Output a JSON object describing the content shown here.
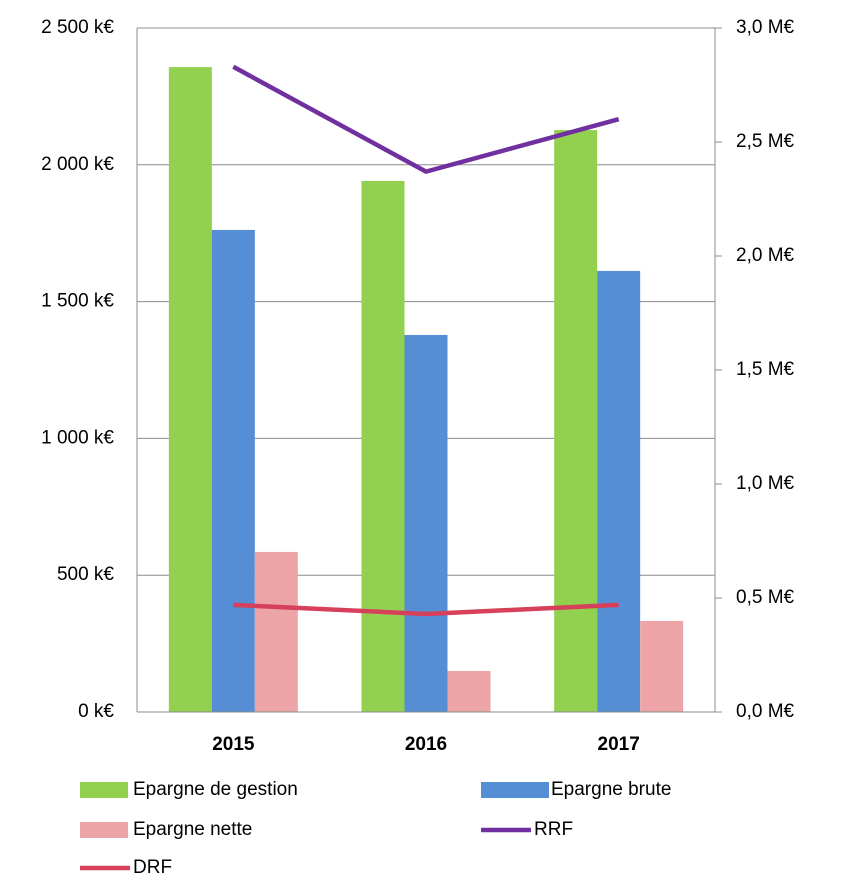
{
  "chart_data": {
    "type": "bar",
    "categories": [
      "2015",
      "2016",
      "2017"
    ],
    "series": [
      {
        "name": "Epargne de gestion",
        "color": "#92d050",
        "values": [
          2357,
          1941,
          2127
        ]
      },
      {
        "name": "Epargne brute",
        "color": "#558ed5",
        "values": [
          1762,
          1378,
          1612
        ]
      },
      {
        "name": "Epargne nette",
        "color": "#eca4a6",
        "values": [
          585,
          150,
          333
        ]
      },
      {
        "name": "RRF",
        "color": "#7030a0",
        "type": "line",
        "axis": "y2",
        "values": [
          2.83,
          2.37,
          2.6
        ]
      },
      {
        "name": "DRF",
        "color": "#d6405a",
        "type": "line",
        "axis": "y2",
        "values": [
          0.47,
          0.43,
          0.47
        ]
      }
    ],
    "ylim": [
      0,
      2500
    ],
    "yticks": [
      {
        "value": 0,
        "label": "0 k€"
      },
      {
        "value": 500,
        "label": "500 k€"
      },
      {
        "value": 1000,
        "label": "1 000 k€"
      },
      {
        "value": 1500,
        "label": "1 500 k€"
      },
      {
        "value": 2000,
        "label": "2 000 k€"
      },
      {
        "value": 2500,
        "label": "2 500 k€"
      }
    ],
    "y2lim": [
      0,
      3
    ],
    "y2ticks": [
      {
        "value": 0,
        "label": "0,0 M€"
      },
      {
        "value": 0.5,
        "label": "0,5 M€"
      },
      {
        "value": 1,
        "label": "1,0 M€"
      },
      {
        "value": 1.5,
        "label": "1,5 M€"
      },
      {
        "value": 2,
        "label": "2,0 M€"
      },
      {
        "value": 2.5,
        "label": "2,5 M€"
      },
      {
        "value": 3,
        "label": "3,0 M€"
      }
    ],
    "grid": true,
    "legend": "bottom"
  }
}
